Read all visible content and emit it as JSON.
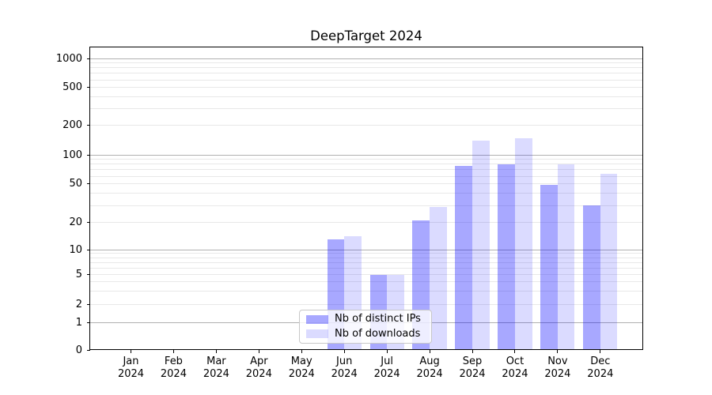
{
  "chart_data": {
    "type": "bar",
    "title": "DeepTarget 2024",
    "categories": [
      "Jan 2024",
      "Feb 2024",
      "Mar 2024",
      "Apr 2024",
      "May 2024",
      "Jun 2024",
      "Jul 2024",
      "Aug 2024",
      "Sep 2024",
      "Oct 2024",
      "Nov 2024",
      "Dec 2024"
    ],
    "series": [
      {
        "name": "Nb of distinct IPs",
        "color": "rgba(0,0,255,0.34)",
        "values": [
          0,
          0,
          0,
          0,
          0,
          13,
          5,
          21,
          77,
          80,
          49,
          30
        ]
      },
      {
        "name": "Nb of downloads",
        "color": "rgba(0,0,255,0.14)",
        "values": [
          0,
          0,
          0,
          0,
          0,
          14,
          5,
          29,
          140,
          147,
          80,
          63
        ]
      }
    ],
    "y_axis": {
      "scale": "symlog",
      "tick_labels": [
        "0",
        "1",
        "2",
        "5",
        "10",
        "20",
        "50",
        "100",
        "200",
        "500",
        "1000"
      ],
      "ticks": [
        0,
        1,
        2,
        5,
        10,
        20,
        50,
        100,
        200,
        500,
        1000
      ],
      "ylim": [
        0,
        1200
      ]
    },
    "grid": {
      "major_lines": [
        1,
        10,
        100,
        1000
      ],
      "minor_multiples": [
        2,
        3,
        4,
        5,
        6,
        7,
        8,
        9
      ],
      "minor_decades": [
        1,
        10,
        100
      ]
    },
    "legend": {
      "position": "bottom-center"
    },
    "colors": {
      "grid_major": "#b0b0b0",
      "grid_minor": "#e8e8e8",
      "axis": "#000000"
    }
  }
}
